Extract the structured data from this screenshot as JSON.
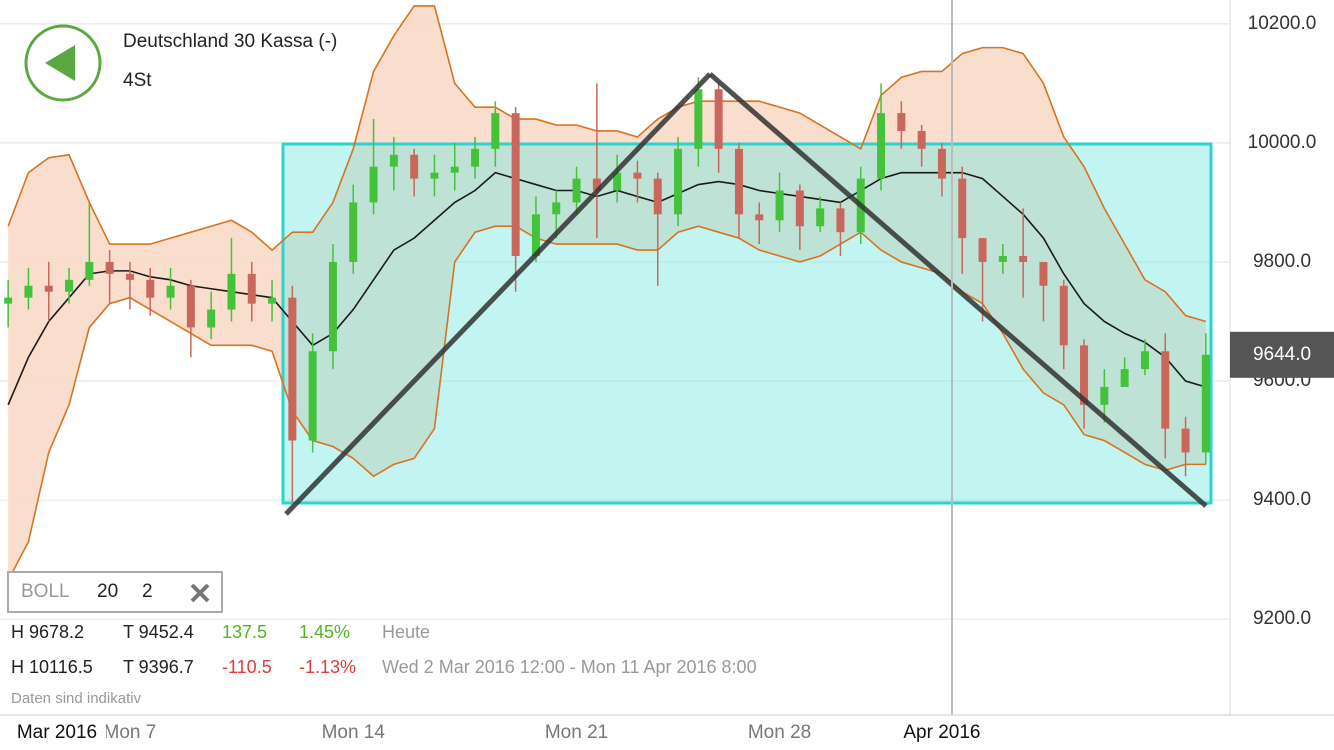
{
  "header": {
    "title": "Deutschland 30 Kassa (-)",
    "interval": "4St"
  },
  "panel": {
    "indicator": "BOLL",
    "period": "20",
    "deviation": "2",
    "today": {
      "high": "H 9678.2",
      "low": "T 9452.4",
      "change": "137.5",
      "change_pct": "1.45%",
      "label": "Heute"
    },
    "range": {
      "high": "H 10116.5",
      "low": "T 9396.7",
      "change": "-110.5",
      "change_pct": "-1.13%",
      "label": "Wed 2 Mar 2016 12:00 - Mon 11 Apr 2016 8:00"
    },
    "note": "Daten sind indikativ"
  },
  "chart_data": {
    "type": "candlestick",
    "categories": [
      null,
      null,
      "Mar 2016",
      null,
      null,
      null,
      "Mon 7",
      null,
      null,
      null,
      null,
      null,
      null,
      null,
      null,
      null,
      null,
      "Mon 14",
      null,
      null,
      null,
      null,
      null,
      null,
      null,
      null,
      null,
      null,
      "Mon 21",
      null,
      null,
      null,
      null,
      null,
      null,
      null,
      null,
      null,
      "Mon 28",
      null,
      null,
      null,
      null,
      null,
      null,
      null,
      "Apr 2016",
      null,
      null,
      null,
      null,
      null,
      null,
      null,
      null,
      null,
      null,
      null,
      null,
      null
    ],
    "open": [
      9730,
      9740,
      9760,
      9750,
      9770,
      9800,
      9780,
      9770,
      9740,
      9760,
      9690,
      9720,
      9780,
      9730,
      9740,
      9500,
      9650,
      9800,
      9900,
      9960,
      9980,
      9940,
      9950,
      9960,
      9990,
      10050,
      9810,
      9880,
      9900,
      9940,
      9920,
      9950,
      9940,
      9880,
      9990,
      10090,
      9990,
      9880,
      9870,
      9920,
      9860,
      9890,
      9850,
      9940,
      10050,
      10020,
      9990,
      9940,
      9840,
      9800,
      9810,
      9800,
      9760,
      9660,
      9560,
      9590,
      9620,
      9650,
      9520,
      9480
    ],
    "high": [
      9770,
      9790,
      9800,
      9790,
      9900,
      9820,
      9800,
      9790,
      9790,
      9770,
      9750,
      9840,
      9800,
      9770,
      9760,
      9680,
      9830,
      9930,
      10040,
      10010,
      9990,
      9980,
      10000,
      10010,
      10070,
      10060,
      9910,
      9920,
      9960,
      10100,
      9980,
      9970,
      9950,
      10010,
      10110,
      10100,
      10000,
      9900,
      9950,
      9930,
      9910,
      9900,
      9960,
      10100,
      10070,
      10030,
      10000,
      9960,
      9840,
      9830,
      9890,
      9800,
      9770,
      9670,
      9620,
      9640,
      9670,
      9680,
      9540,
      9680
    ],
    "low": [
      9690,
      9720,
      9700,
      9730,
      9760,
      9730,
      9720,
      9710,
      9720,
      9640,
      9670,
      9700,
      9700,
      9700,
      9397,
      9480,
      9620,
      9780,
      9880,
      9920,
      9910,
      9910,
      9920,
      9940,
      9960,
      9750,
      9800,
      9840,
      9880,
      9840,
      9900,
      9900,
      9760,
      9860,
      9960,
      9950,
      9840,
      9830,
      9850,
      9820,
      9850,
      9810,
      9830,
      9920,
      9990,
      9960,
      9910,
      9780,
      9700,
      9780,
      9740,
      9700,
      9620,
      9520,
      9530,
      9590,
      9610,
      9470,
      9440,
      9460
    ],
    "close": [
      9740,
      9760,
      9750,
      9770,
      9800,
      9780,
      9770,
      9740,
      9760,
      9690,
      9720,
      9780,
      9730,
      9740,
      9500,
      9650,
      9800,
      9900,
      9960,
      9980,
      9940,
      9950,
      9960,
      9990,
      10050,
      9810,
      9880,
      9900,
      9940,
      9920,
      9950,
      9940,
      9880,
      9990,
      10090,
      9990,
      9880,
      9870,
      9920,
      9860,
      9890,
      9850,
      9940,
      10050,
      10020,
      9990,
      9940,
      9840,
      9800,
      9810,
      9800,
      9760,
      9660,
      9560,
      9590,
      9620,
      9650,
      9520,
      9480,
      9644
    ],
    "up_color": "#44c23a",
    "down_color": "#c9675d",
    "bands": [
      {
        "name": "upper",
        "color": "#d8731f",
        "values": [
          9860,
          9950,
          9975,
          9980,
          9900,
          9830,
          9830,
          9830,
          9840,
          9850,
          9860,
          9870,
          9850,
          9820,
          9850,
          9850,
          9900,
          9990,
          10120,
          10180,
          10230,
          10230,
          10100,
          10060,
          10060,
          10040,
          10040,
          10030,
          10030,
          10020,
          10020,
          10010,
          10040,
          10060,
          10070,
          10070,
          10070,
          10070,
          10060,
          10050,
          10030,
          10010,
          9990,
          10080,
          10110,
          10120,
          10120,
          10150,
          10160,
          10160,
          10150,
          10100,
          10010,
          9960,
          9890,
          9830,
          9770,
          9750,
          9710,
          9700
        ]
      },
      {
        "name": "middle",
        "color": "#1a1a1a",
        "values": [
          9560,
          9640,
          9700,
          9740,
          9780,
          9785,
          9785,
          9775,
          9770,
          9760,
          9755,
          9750,
          9745,
          9740,
          9700,
          9660,
          9680,
          9720,
          9770,
          9820,
          9840,
          9870,
          9900,
          9920,
          9950,
          9940,
          9930,
          9920,
          9920,
          9910,
          9920,
          9910,
          9900,
          9915,
          9930,
          9935,
          9930,
          9920,
          9915,
          9910,
          9905,
          9900,
          9920,
          9940,
          9950,
          9950,
          9950,
          9950,
          9940,
          9910,
          9880,
          9840,
          9780,
          9730,
          9700,
          9680,
          9665,
          9640,
          9600,
          9590
        ]
      },
      {
        "name": "lower",
        "color": "#d8731f",
        "values": [
          9265,
          9330,
          9480,
          9560,
          9690,
          9730,
          9740,
          9720,
          9700,
          9680,
          9660,
          9660,
          9660,
          9650,
          9550,
          9500,
          9490,
          9470,
          9440,
          9460,
          9470,
          9520,
          9800,
          9850,
          9860,
          9860,
          9840,
          9830,
          9830,
          9830,
          9830,
          9820,
          9820,
          9850,
          9860,
          9850,
          9840,
          9820,
          9810,
          9800,
          9810,
          9830,
          9850,
          9820,
          9800,
          9790,
          9780,
          9750,
          9730,
          9680,
          9620,
          9580,
          9560,
          9510,
          9500,
          9480,
          9460,
          9450,
          9460,
          9460
        ]
      }
    ],
    "band_fill": "#f8d9c8",
    "ylim": [
      9039,
      10240
    ],
    "yticks": [
      {
        "value": 10200,
        "label": "10200.0"
      },
      {
        "value": 10000,
        "label": "10000.0"
      },
      {
        "value": 9800,
        "label": "9800.0"
      },
      {
        "value": 9600,
        "label": "9600.0"
      },
      {
        "value": 9400,
        "label": "9400.0"
      },
      {
        "value": 9200,
        "label": "9200.0"
      }
    ],
    "last_price": {
      "value": 9644,
      "label": "9644.0"
    },
    "grid": true
  }
}
